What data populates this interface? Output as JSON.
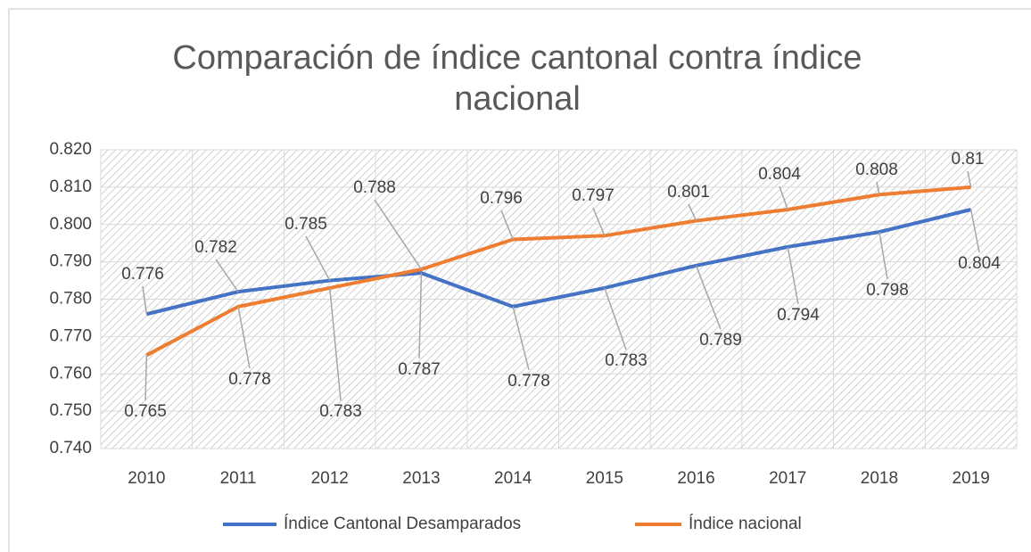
{
  "chart_data": {
    "type": "line",
    "title": "Comparación de índice cantonal contra índice nacional",
    "categories": [
      "2010",
      "2011",
      "2012",
      "2013",
      "2014",
      "2015",
      "2016",
      "2017",
      "2018",
      "2019"
    ],
    "series": [
      {
        "name": "Índice Cantonal Desamparados",
        "color": "#4472c4",
        "values": [
          0.776,
          0.782,
          0.785,
          0.787,
          0.778,
          0.783,
          0.789,
          0.794,
          0.798,
          0.804
        ]
      },
      {
        "name": "Índice nacional",
        "color": "#ed7d31",
        "values": [
          0.765,
          0.778,
          0.783,
          0.788,
          0.796,
          0.797,
          0.801,
          0.804,
          0.808,
          0.81
        ]
      }
    ],
    "ylim": [
      0.74,
      0.82
    ],
    "yticks": [
      {
        "value": 0.74,
        "label": "0.740"
      },
      {
        "value": 0.75,
        "label": "0.750"
      },
      {
        "value": 0.76,
        "label": "0.760"
      },
      {
        "value": 0.77,
        "label": "0.770"
      },
      {
        "value": 0.78,
        "label": "0.780"
      },
      {
        "value": 0.79,
        "label": "0.790"
      },
      {
        "value": 0.8,
        "label": "0.800"
      },
      {
        "value": 0.81,
        "label": "0.810"
      },
      {
        "value": 0.82,
        "label": "0.820"
      }
    ],
    "grid": true,
    "legend": "bottom"
  }
}
